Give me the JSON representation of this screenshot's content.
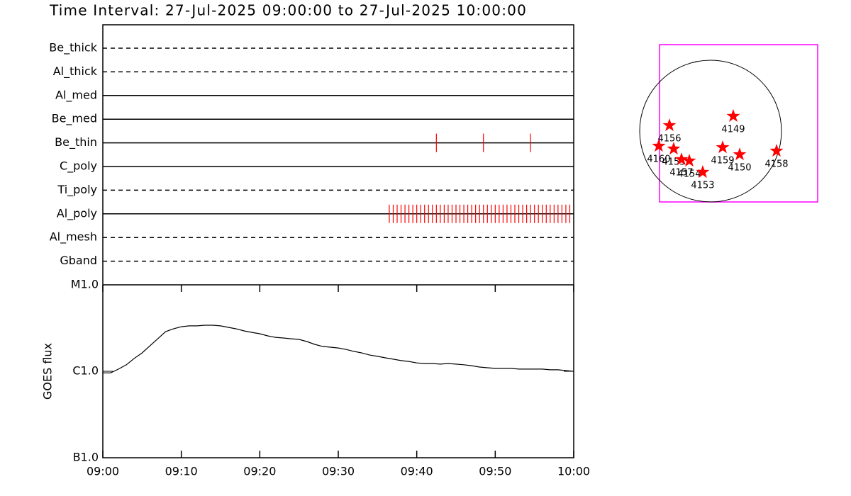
{
  "title": "Time Interval: 27-Jul-2025 09:00:00 to 27-Jul-2025 10:00:00",
  "chart_data": [
    {
      "type": "timeline",
      "xlim": [
        "09:00",
        "10:00"
      ],
      "series": [
        {
          "name": "Be_thick",
          "line_style": "dashed",
          "color": "#ff0000",
          "x": []
        },
        {
          "name": "Al_thick",
          "line_style": "dashed",
          "color": "#ff0000",
          "x": []
        },
        {
          "name": "Al_med",
          "line_style": "solid",
          "color": "#ff0000",
          "x": []
        },
        {
          "name": "Be_med",
          "line_style": "solid",
          "color": "#ff0000",
          "x": []
        },
        {
          "name": "Be_thin",
          "line_style": "solid",
          "color": "#ff0000",
          "x": [
            "09:42:30",
            "09:48:30",
            "09:54:30"
          ]
        },
        {
          "name": "C_poly",
          "line_style": "solid",
          "color": "#ff0000",
          "x": []
        },
        {
          "name": "Ti_poly",
          "line_style": "dashed",
          "color": "#ff0000",
          "x": []
        },
        {
          "name": "Al_poly",
          "line_style": "solid",
          "color": "#ff0000",
          "x": [
            "09:36:30",
            "09:37:00",
            "09:37:30",
            "09:38:00",
            "09:38:30",
            "09:39:00",
            "09:39:30",
            "09:40:00",
            "09:40:30",
            "09:41:00",
            "09:41:30",
            "09:42:00",
            "09:42:30",
            "09:43:00",
            "09:43:30",
            "09:44:00",
            "09:44:30",
            "09:45:00",
            "09:45:30",
            "09:46:00",
            "09:46:30",
            "09:47:00",
            "09:47:30",
            "09:48:00",
            "09:48:30",
            "09:49:00",
            "09:49:30",
            "09:50:00",
            "09:50:30",
            "09:51:00",
            "09:51:30",
            "09:52:00",
            "09:52:30",
            "09:53:00",
            "09:53:30",
            "09:54:00",
            "09:54:30",
            "09:55:00",
            "09:55:30",
            "09:56:00",
            "09:56:30",
            "09:57:00",
            "09:57:30",
            "09:58:00",
            "09:58:30",
            "09:59:00",
            "09:59:30"
          ]
        },
        {
          "name": "Al_mesh",
          "line_style": "dashed",
          "color": "#ff0000",
          "x": []
        },
        {
          "name": "Gband",
          "line_style": "dashed",
          "color": "#ff0000",
          "x": []
        }
      ]
    },
    {
      "type": "line",
      "ylabel": "GOES flux",
      "log_y": true,
      "color": "#000000",
      "xlim": [
        "09:00",
        "10:00"
      ],
      "xticks": [
        "09:00",
        "09:10",
        "09:20",
        "09:30",
        "09:40",
        "09:50",
        "10:00"
      ],
      "ylim": [
        1e-07,
        1e-05
      ],
      "yticks": [
        {
          "value": 1e-07,
          "label": "B1.0"
        },
        {
          "value": 1e-06,
          "label": "C1.0"
        },
        {
          "value": 1e-05,
          "label": "M1.0"
        }
      ],
      "x": [
        "09:00",
        "09:01",
        "09:02",
        "09:03",
        "09:04",
        "09:05",
        "09:06",
        "09:07",
        "09:08",
        "09:09",
        "09:10",
        "09:11",
        "09:12",
        "09:13",
        "09:14",
        "09:15",
        "09:16",
        "09:17",
        "09:18",
        "09:19",
        "09:20",
        "09:21",
        "09:22",
        "09:23",
        "09:24",
        "09:25",
        "09:26",
        "09:27",
        "09:28",
        "09:29",
        "09:30",
        "09:31",
        "09:32",
        "09:33",
        "09:34",
        "09:35",
        "09:36",
        "09:37",
        "09:38",
        "09:39",
        "09:40",
        "09:41",
        "09:42",
        "09:43",
        "09:44",
        "09:45",
        "09:46",
        "09:47",
        "09:48",
        "09:49",
        "09:50",
        "09:51",
        "09:52",
        "09:53",
        "09:54",
        "09:55",
        "09:56",
        "09:57",
        "09:58",
        "09:59",
        "10:00"
      ],
      "values": [
        9.6e-07,
        9.6e-07,
        1.06e-06,
        1.19e-06,
        1.41e-06,
        1.63e-06,
        1.97e-06,
        2.38e-06,
        2.88e-06,
        3.1e-06,
        3.28e-06,
        3.35e-06,
        3.35e-06,
        3.41e-06,
        3.41e-06,
        3.35e-06,
        3.22e-06,
        3.1e-06,
        2.93e-06,
        2.82e-06,
        2.72e-06,
        2.57e-06,
        2.47e-06,
        2.43e-06,
        2.38e-06,
        2.34e-06,
        2.21e-06,
        2.05e-06,
        1.94e-06,
        1.9e-06,
        1.86e-06,
        1.79e-06,
        1.7e-06,
        1.63e-06,
        1.54e-06,
        1.49e-06,
        1.43e-06,
        1.38e-06,
        1.33e-06,
        1.3e-06,
        1.25e-06,
        1.23e-06,
        1.23e-06,
        1.21e-06,
        1.23e-06,
        1.21e-06,
        1.19e-06,
        1.16e-06,
        1.12e-06,
        1.1e-06,
        1.08e-06,
        1.08e-06,
        1.08e-06,
        1.06e-06,
        1.06e-06,
        1.06e-06,
        1.06e-06,
        1.04e-06,
        1.04e-06,
        1.02e-06,
        1e-06
      ]
    },
    {
      "type": "scatter",
      "color": "#ff0000",
      "frame_color": "#ff00ff",
      "disk_radius": 950,
      "xlim": [
        -684,
        1435
      ],
      "ylim": [
        -950,
        1159
      ],
      "labels": [
        "4149",
        "4156",
        "4160",
        "4155",
        "4157",
        "4154",
        "4153",
        "4159",
        "4150",
        "4158"
      ],
      "x": [
        304,
        -551,
        -694,
        -494,
        -390,
        -285,
        -105,
        162,
        390,
        884
      ],
      "y": [
        200,
        76,
        -200,
        -238,
        -380,
        -399,
        -551,
        -219,
        -314,
        -266
      ]
    }
  ]
}
